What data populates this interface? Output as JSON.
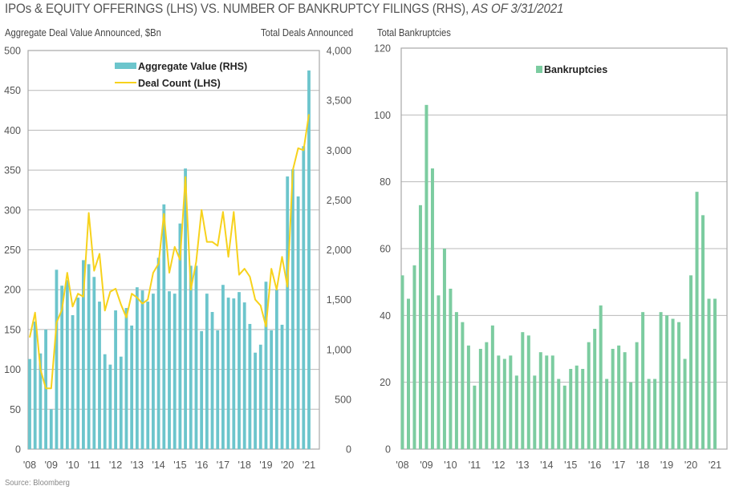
{
  "title": {
    "main": "IPOs & EQUITY OFFERINGS (LHS) VS. NUMBER OF BANKRUPTCY FILINGS (RHS), ",
    "asof": "AS OF 3/31/2021"
  },
  "source": "Source: Bloomberg",
  "colors": {
    "teal": "#6cc5cc",
    "yellow": "#f7d21c",
    "green": "#7ccca0",
    "grid": "#b9b9b9",
    "axis": "#a8a8a8"
  },
  "chart_data": [
    {
      "type": "bar",
      "name": "ipo-equity-offerings",
      "ylabel": "Aggregate Deal Value Announced, $Bn",
      "y2label": "Total Deals Announced",
      "ylim": [
        0,
        500
      ],
      "y2lim": [
        0,
        4000
      ],
      "yticks": [
        "0",
        "50",
        "100",
        "150",
        "200",
        "250",
        "300",
        "350",
        "400",
        "450",
        "500"
      ],
      "y2ticks": [
        "0",
        "500",
        "1,000",
        "1,500",
        "2,000",
        "2,500",
        "3,000",
        "3,500",
        "4,000"
      ],
      "xticks": [
        "'08",
        "'09",
        "'10",
        "'11",
        "'12",
        "'13",
        "'14",
        "'15",
        "'16",
        "'17",
        "'18",
        "'19",
        "'20",
        "'21"
      ],
      "grid": true,
      "legend_position": "top-center",
      "series": [
        {
          "name": "Aggregate Value (RHS)",
          "kind": "bar",
          "axis": "left",
          "values": [
            113,
            160,
            120,
            150,
            50,
            225,
            205,
            212,
            168,
            190,
            237,
            232,
            216,
            185,
            119,
            106,
            174,
            116,
            177,
            155,
            203,
            199,
            185,
            195,
            240,
            307,
            198,
            195,
            283,
            352,
            230,
            230,
            148,
            195,
            172,
            149,
            206,
            190,
            189,
            197,
            184,
            157,
            121,
            131,
            210,
            149,
            200,
            156,
            342,
            351,
            317,
            380,
            475
          ]
        },
        {
          "name": "Deal Count (LHS)",
          "kind": "line",
          "axis": "right",
          "values": [
            1120,
            1370,
            800,
            610,
            610,
            1270,
            1400,
            1770,
            1430,
            1560,
            1530,
            2370,
            1790,
            1960,
            1390,
            1580,
            1610,
            1450,
            1320,
            1560,
            1520,
            1460,
            1500,
            1770,
            1860,
            2360,
            1770,
            2030,
            1900,
            2730,
            1600,
            1880,
            2400,
            2080,
            2080,
            2040,
            2380,
            1930,
            2380,
            1750,
            1810,
            1730,
            1500,
            1440,
            1230,
            1810,
            1600,
            1930,
            1630,
            2800,
            3020,
            3000,
            3360
          ]
        }
      ]
    },
    {
      "type": "bar",
      "name": "bankruptcies",
      "ylabel": "Total Bankruptcies",
      "ylim": [
        0,
        120
      ],
      "yticks": [
        "0",
        "20",
        "40",
        "60",
        "80",
        "100",
        "120"
      ],
      "xticks": [
        "'08",
        "'09",
        "'10",
        "'11",
        "'12",
        "'13",
        "'14",
        "'15",
        "'16",
        "'17",
        "'18",
        "'19",
        "'20",
        "'21"
      ],
      "grid": true,
      "legend_position": "top-center",
      "series": [
        {
          "name": "Bankruptcies",
          "values": [
            52,
            45,
            55,
            73,
            103,
            84,
            46,
            60,
            48,
            41,
            38,
            31,
            19,
            30,
            32,
            37,
            28,
            27,
            28,
            22,
            35,
            34,
            22,
            29,
            28,
            28,
            21,
            19,
            24,
            25,
            24,
            32,
            36,
            43,
            21,
            30,
            31,
            29,
            20,
            32,
            41,
            21,
            21,
            41,
            40,
            39,
            38,
            27,
            52,
            77,
            70,
            45,
            45
          ]
        }
      ]
    }
  ]
}
